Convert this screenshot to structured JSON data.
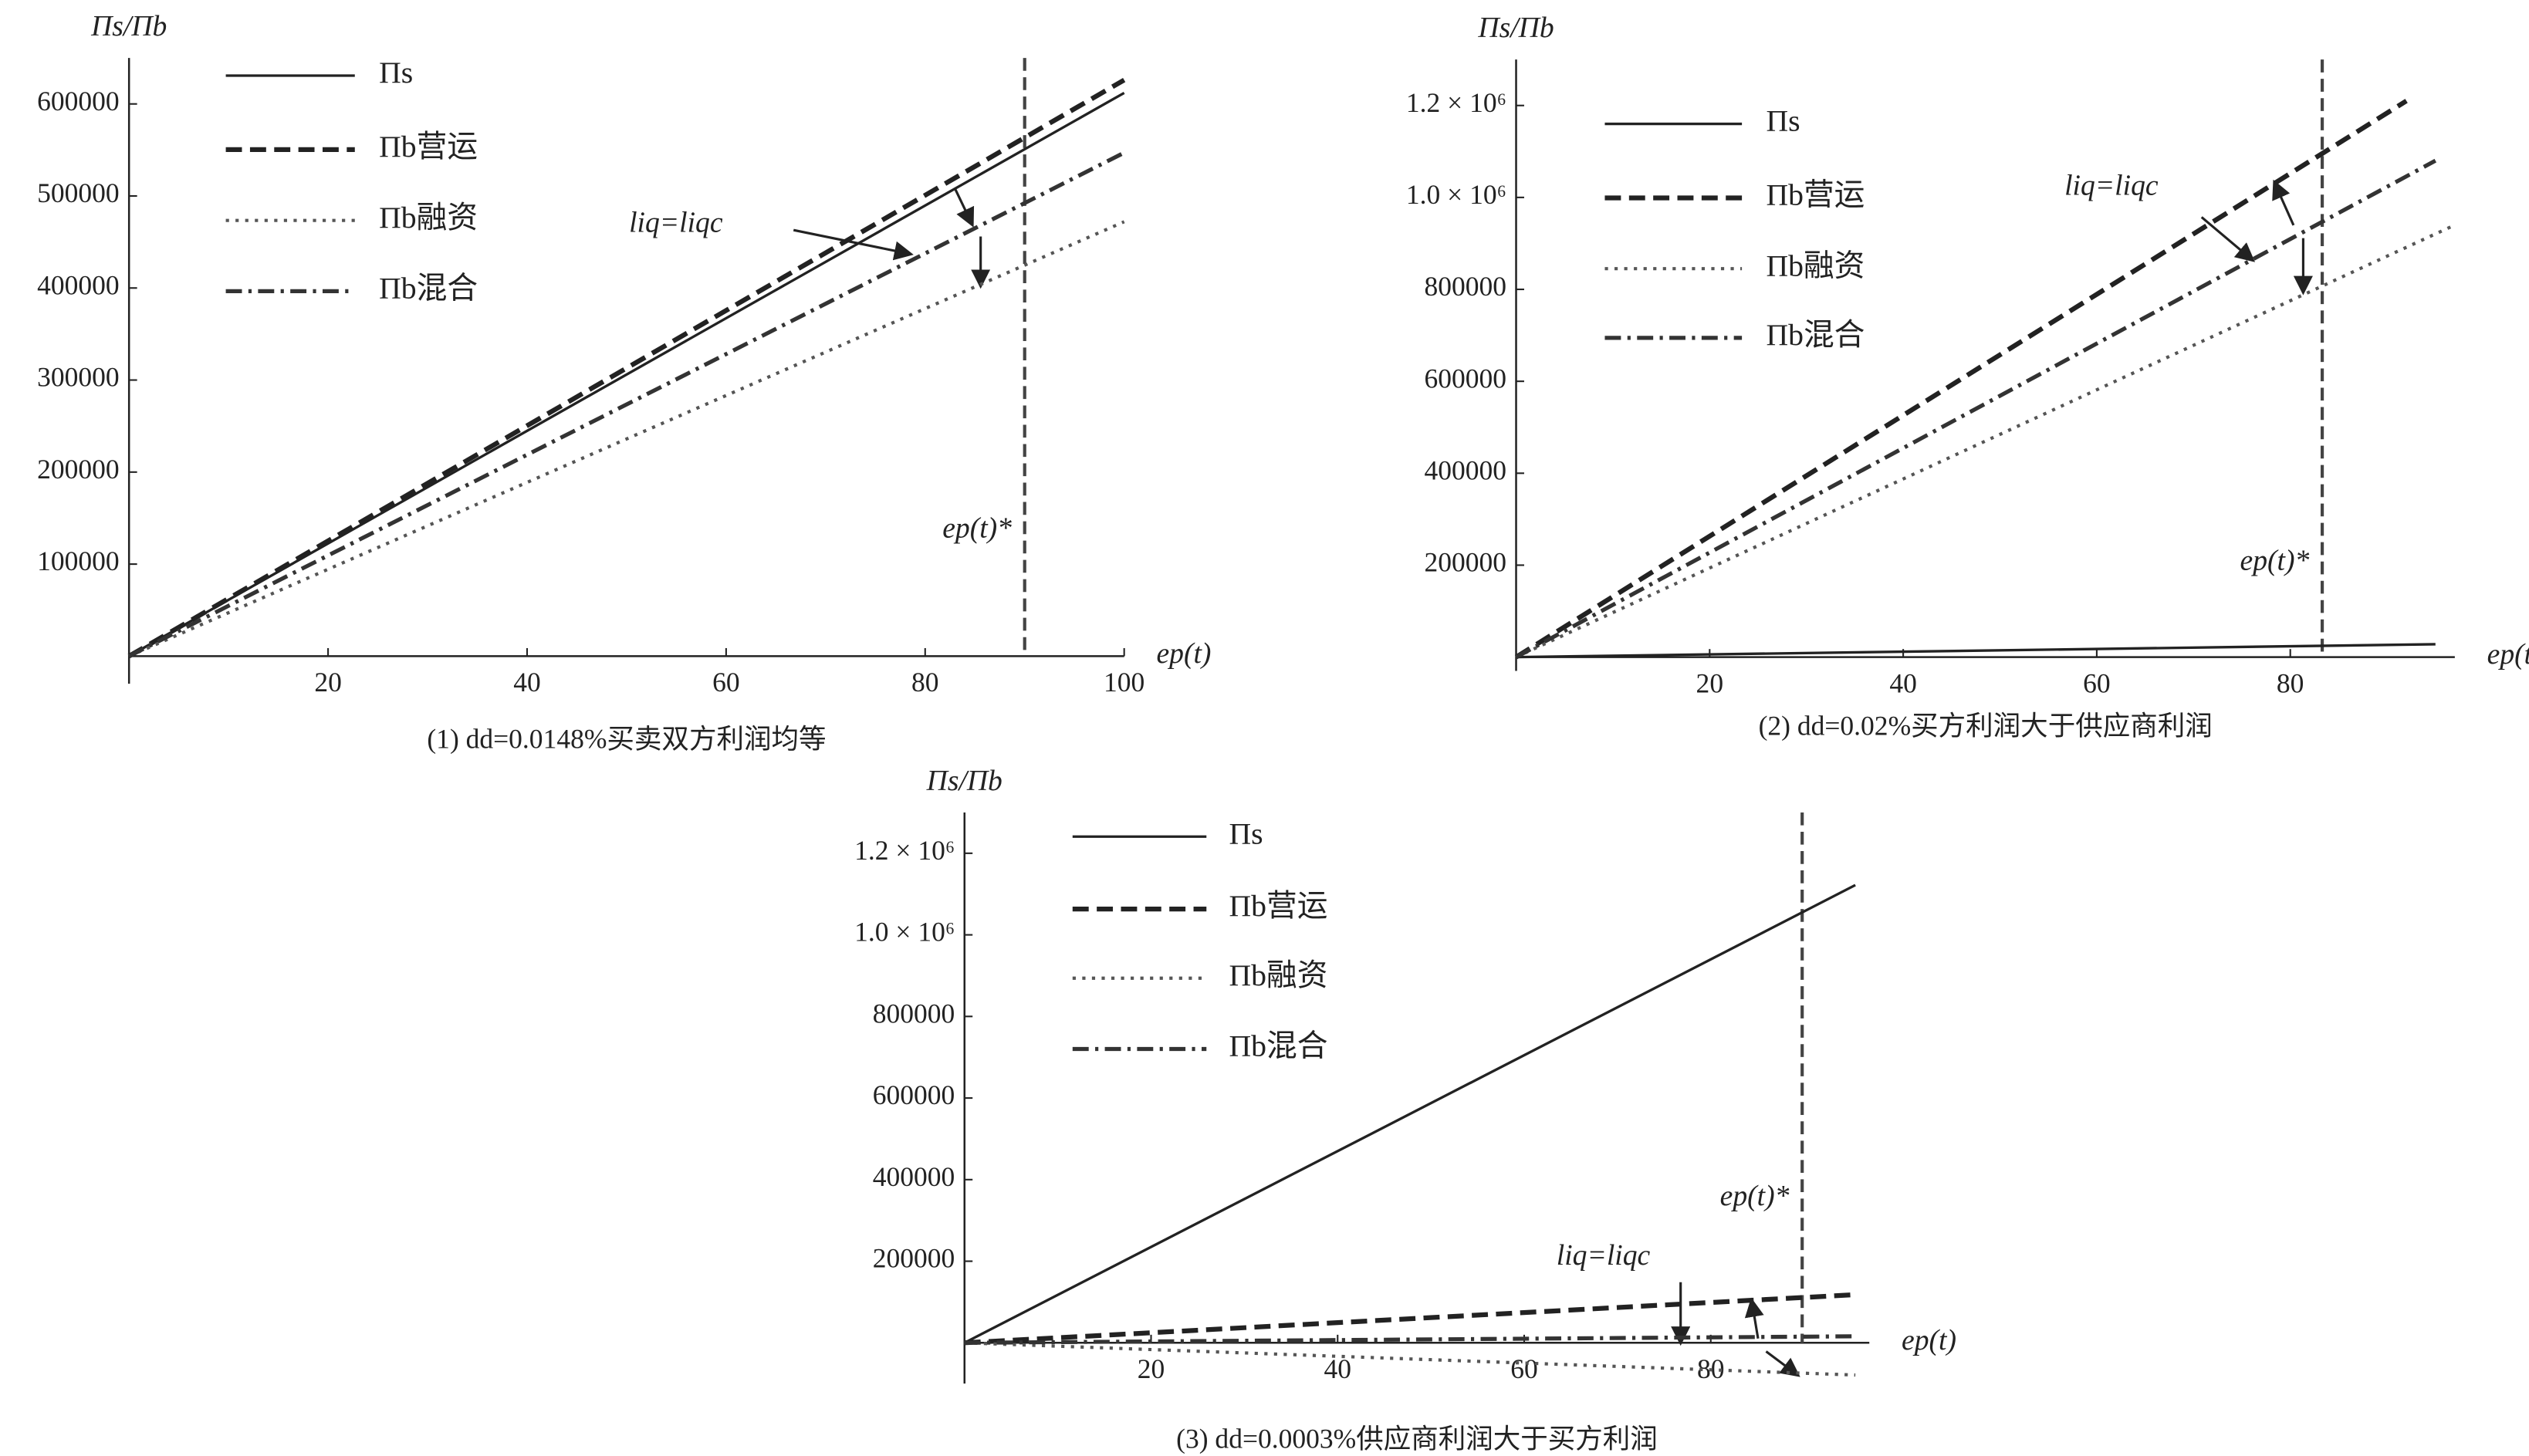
{
  "chart_data": [
    {
      "type": "line",
      "caption": "(1) dd=0.0148%买卖双方利润均等",
      "ylabel": "Πs/Πb",
      "xlabel": "ep(t)",
      "xlim": [
        0,
        100
      ],
      "ylim": [
        -30000,
        650000
      ],
      "xticks": [
        20,
        40,
        60,
        80,
        100
      ],
      "yticks": [
        100000,
        200000,
        300000,
        400000,
        500000,
        600000
      ],
      "vline_x": 90,
      "vline_label": "ep(t)*",
      "annotation": "liq=liqc",
      "series": [
        {
          "name": "Πs",
          "color": "#222",
          "style": "solid",
          "x": [
            0,
            100
          ],
          "values": [
            0,
            612000
          ]
        },
        {
          "name": "Πb营运",
          "color": "#222",
          "style": "dash",
          "x": [
            0,
            100
          ],
          "values": [
            0,
            626000
          ]
        },
        {
          "name": "Πb融资",
          "color": "#555",
          "style": "dot",
          "x": [
            0,
            100
          ],
          "values": [
            0,
            472000
          ]
        },
        {
          "name": "Πb混合",
          "color": "#333",
          "style": "dashdot",
          "x": [
            0,
            100
          ],
          "values": [
            0,
            547000
          ]
        }
      ]
    },
    {
      "type": "line",
      "caption": "(2) dd=0.02%买方利润大于供应商利润",
      "ylabel": "Πs/Πb",
      "xlabel": "ep(t)",
      "xlim": [
        0,
        97
      ],
      "ylim": [
        -30000,
        1300000
      ],
      "xticks": [
        20,
        40,
        60,
        80
      ],
      "yticks": [
        200000,
        400000,
        600000,
        800000,
        {
          "value": 1000000,
          "label": "1.0 × 10⁶"
        },
        {
          "value": 1200000,
          "label": "1.2 × 10⁶"
        }
      ],
      "vline_x": 83.3,
      "vline_label": "ep(t)*",
      "annotation": "liq=liqc",
      "series": [
        {
          "name": "Πs",
          "color": "#222",
          "style": "solid",
          "x": [
            0,
            95
          ],
          "values": [
            0,
            28000
          ]
        },
        {
          "name": "Πb营运",
          "color": "#222",
          "style": "dash",
          "x": [
            0,
            92
          ],
          "values": [
            0,
            1210000
          ]
        },
        {
          "name": "Πb融资",
          "color": "#555",
          "style": "dot",
          "x": [
            0,
            97
          ],
          "values": [
            0,
            940000
          ]
        },
        {
          "name": "Πb混合",
          "color": "#333",
          "style": "dashdot",
          "x": [
            0,
            95
          ],
          "values": [
            0,
            1080000
          ]
        }
      ]
    },
    {
      "type": "line",
      "caption": "(3) dd=0.0003%供应商利润大于买方利润",
      "ylabel": "Πs/Πb",
      "xlabel": "ep(t)",
      "xlim": [
        0,
        97
      ],
      "ylim": [
        -100000,
        1300000
      ],
      "xticks": [
        20,
        40,
        60,
        80
      ],
      "yticks": [
        200000,
        400000,
        600000,
        800000,
        {
          "value": 1000000,
          "label": "1.0 × 10⁶"
        },
        {
          "value": 1200000,
          "label": "1.2 × 10⁶"
        }
      ],
      "vline_x": 89.8,
      "vline_label": "ep(t)*",
      "annotation": "liq=liqc",
      "series": [
        {
          "name": "Πs",
          "color": "#222",
          "style": "solid",
          "x": [
            0,
            95.5
          ],
          "values": [
            0,
            1122000
          ]
        },
        {
          "name": "Πb营运",
          "color": "#222",
          "style": "dash",
          "x": [
            0,
            95.5
          ],
          "values": [
            0,
            118000
          ]
        },
        {
          "name": "Πb融资",
          "color": "#555",
          "style": "dot",
          "x": [
            0,
            95.5
          ],
          "values": [
            0,
            -79000
          ]
        },
        {
          "name": "Πb混合",
          "color": "#333",
          "style": "dashdot",
          "x": [
            0,
            95.5
          ],
          "values": [
            0,
            16000
          ]
        }
      ]
    }
  ]
}
